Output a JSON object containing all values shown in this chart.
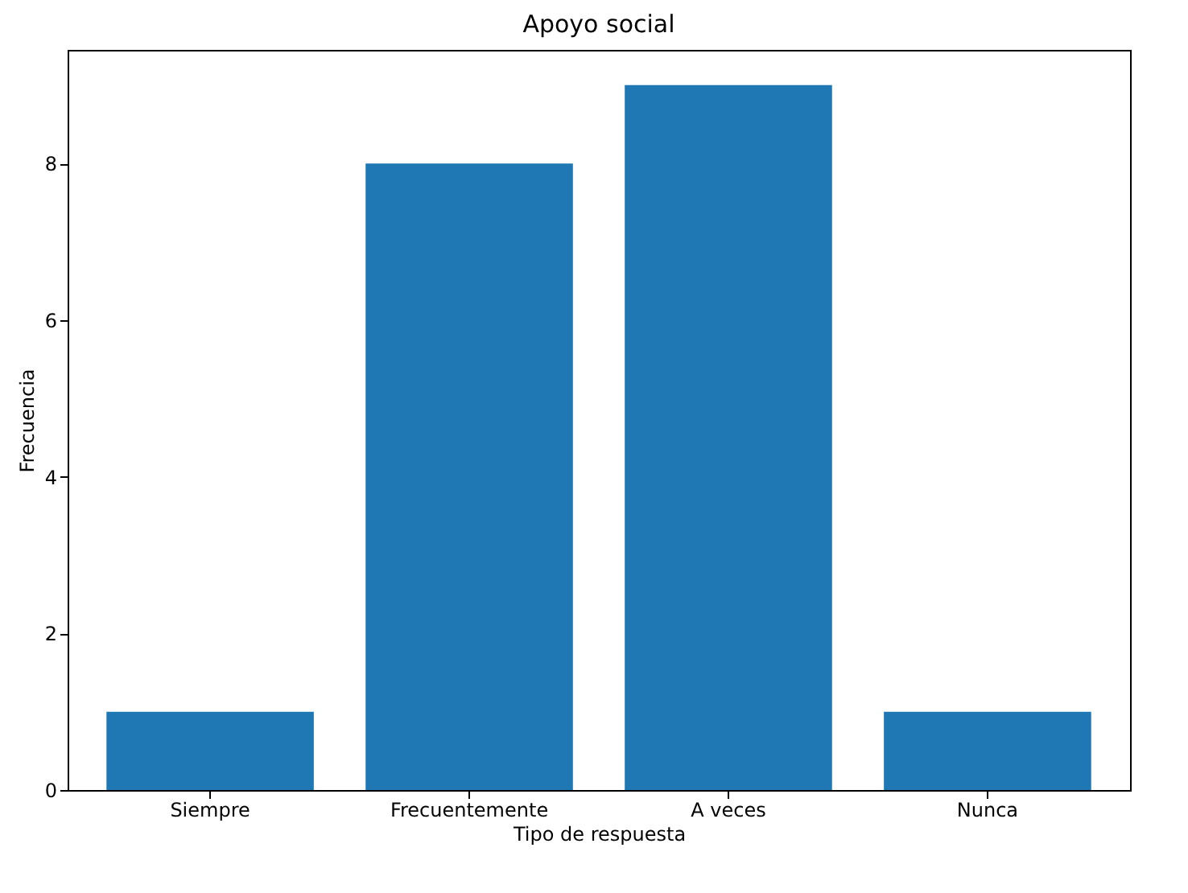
{
  "chart_data": {
    "type": "bar",
    "title": "Apoyo social",
    "xlabel": "Tipo de respuesta",
    "ylabel": "Frecuencia",
    "categories": [
      "Siempre",
      "Frecuentemente",
      "A veces",
      "Nunca"
    ],
    "values": [
      1,
      8,
      9,
      1
    ],
    "color": "#1f77b4",
    "ylim": [
      0,
      9.45
    ],
    "yticks": [
      0,
      2,
      4,
      6,
      8
    ],
    "grid": false
  }
}
